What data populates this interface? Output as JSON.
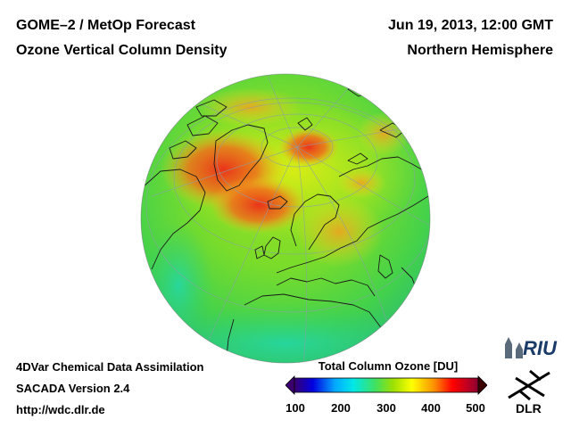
{
  "header": {
    "title_left": "GOME–2 / MetOp Forecast",
    "subtitle_left": "Ozone Vertical Column Density",
    "date_right": "Jun 19, 2013, 12:00 GMT",
    "region_right": "Northern Hemisphere"
  },
  "footer": {
    "method": "4DVar Chemical Data Assimilation",
    "version": "SACADA Version 2.4",
    "url": "http://wdc.dlr.de"
  },
  "colorbar": {
    "title": "Total Column Ozone [DU]",
    "min": 100,
    "max": 500,
    "ticks": [
      "100",
      "200",
      "300",
      "400",
      "500"
    ],
    "colors": [
      "#3a0070",
      "#0000e0",
      "#00a8ff",
      "#00e8e8",
      "#40e060",
      "#a0e000",
      "#ffff00",
      "#ff9000",
      "#ff0000",
      "#c00020",
      "#8a0030"
    ]
  },
  "logos": {
    "riu": "RIU",
    "dlr": "DLR"
  },
  "colors": {
    "background_field": "#5ad63a",
    "ocean_low": "#3ad0a0",
    "high_ozone": "#f04020"
  }
}
